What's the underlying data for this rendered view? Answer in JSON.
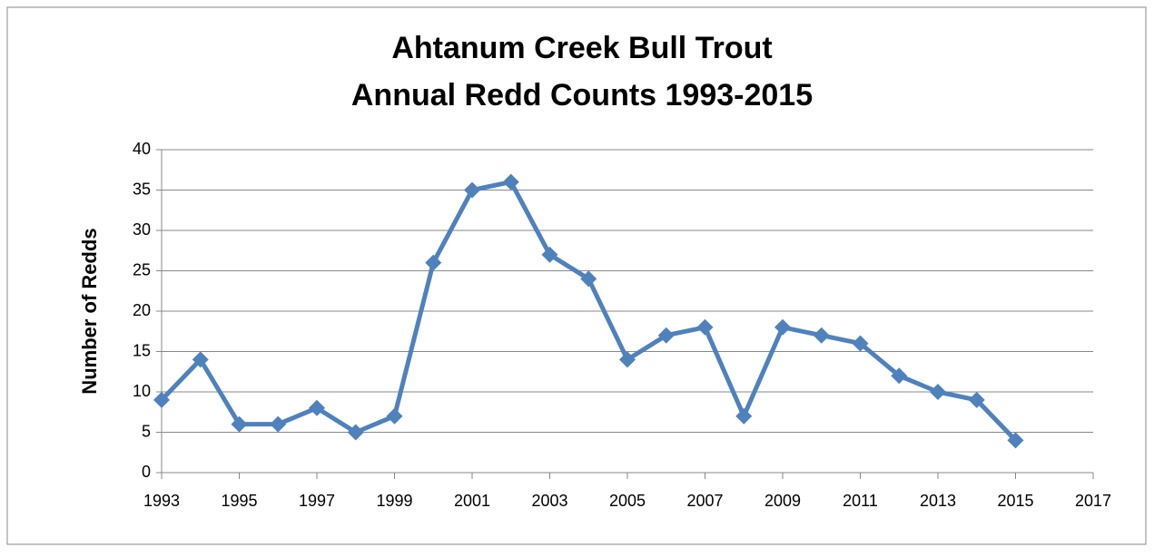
{
  "chart_data": {
    "type": "line",
    "title": [
      "Ahtanum Creek Bull Trout",
      "Annual Redd Counts 1993-2015"
    ],
    "y_label": "Number of Redds",
    "x": [
      1993,
      1994,
      1995,
      1996,
      1997,
      1998,
      1999,
      2000,
      2001,
      2002,
      2003,
      2004,
      2005,
      2006,
      2007,
      2008,
      2009,
      2010,
      2011,
      2012,
      2013,
      2014,
      2015
    ],
    "series": [
      {
        "color": "#4f81bd",
        "values": [
          9,
          14,
          6,
          6,
          8,
          5,
          7,
          26,
          35,
          36,
          27,
          24,
          14,
          17,
          18,
          7,
          18,
          17,
          16,
          12,
          10,
          9,
          4
        ]
      }
    ],
    "xlim": [
      1993,
      2017
    ],
    "xticks": [
      1993,
      1995,
      1997,
      1999,
      2001,
      2003,
      2005,
      2007,
      2009,
      2011,
      2013,
      2015,
      2017
    ],
    "ylim": [
      0,
      40
    ],
    "yticks": [
      0,
      5,
      10,
      15,
      20,
      25,
      30,
      35,
      40
    ],
    "grid": true
  }
}
